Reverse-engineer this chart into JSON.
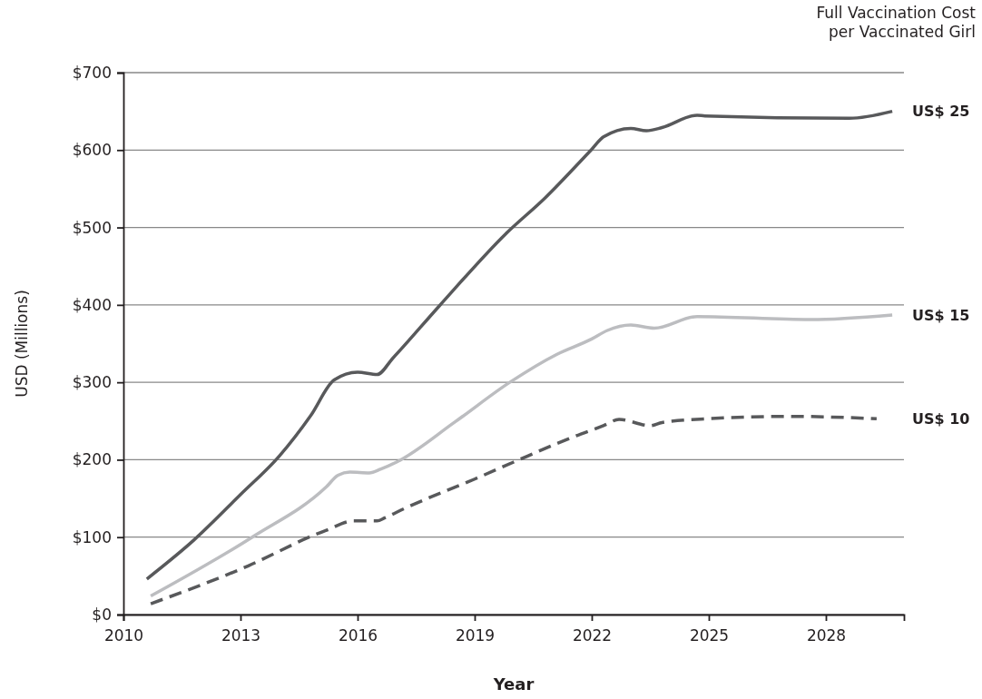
{
  "chart_data": {
    "type": "line",
    "legend_title": "Full Vaccination Cost\nper Vaccinated Girl",
    "xlabel": "Year",
    "ylabel": "USD (Millions)",
    "xlim": [
      2010,
      2030
    ],
    "xticks": [
      2010,
      2013,
      2016,
      2019,
      2022,
      2025,
      2028
    ],
    "ylim": [
      0,
      700
    ],
    "yticks": [
      {
        "value": 0,
        "label": "$0"
      },
      {
        "value": 100,
        "label": "$100"
      },
      {
        "value": 200,
        "label": "$200"
      },
      {
        "value": 300,
        "label": "$300"
      },
      {
        "value": 400,
        "label": "$400"
      },
      {
        "value": 500,
        "label": "$500"
      },
      {
        "value": 600,
        "label": "$600"
      },
      {
        "value": 700,
        "label": "$700"
      }
    ],
    "grid": "y",
    "series": [
      {
        "name": "US$ 25",
        "color": "#58595b",
        "line_style": "solid",
        "x": [
          2010.6,
          2011.8,
          2013,
          2014,
          2014.8,
          2015.4,
          2016,
          2016.5,
          2016.9,
          2018.1,
          2019.8,
          2020.8,
          2022,
          2022.3,
          2023,
          2023.4,
          2023.8,
          2024.7,
          2024.9,
          2028.6,
          2029.7
        ],
        "values": [
          46,
          96,
          155,
          205,
          257,
          303,
          313,
          310,
          331,
          399,
          492,
          538,
          601,
          617,
          628,
          625,
          629,
          645,
          644,
          641,
          650
        ]
      },
      {
        "name": "US$ 15",
        "color": "#bcbdc0",
        "line_style": "solid",
        "x": [
          2010.7,
          2013.3,
          2015.2,
          2015.5,
          2015.8,
          2016.3,
          2016.6,
          2017,
          2018.5,
          2019.9,
          2021.1,
          2022,
          2022.4,
          2023,
          2023.6,
          2024.7,
          2027.6,
          2029.7
        ],
        "values": [
          24,
          100,
          165,
          180,
          184,
          183,
          188,
          197,
          249,
          300,
          336,
          356,
          367,
          374,
          370,
          385,
          381,
          387
        ]
      },
      {
        "name": "US$ 10",
        "color": "#58595b",
        "line_style": "dashed",
        "x": [
          2010.7,
          2013.2,
          2014.9,
          2015.2,
          2015.9,
          2016.5,
          2016.7,
          2017.2,
          2019,
          2020,
          2021.5,
          2022.3,
          2022.7,
          2023.5,
          2023.8,
          2025,
          2027.1,
          2029.3
        ],
        "values": [
          14,
          63,
          103,
          109,
          121,
          121,
          125,
          137,
          175,
          197,
          229,
          244,
          252,
          244,
          248,
          253,
          256,
          253
        ]
      }
    ]
  }
}
